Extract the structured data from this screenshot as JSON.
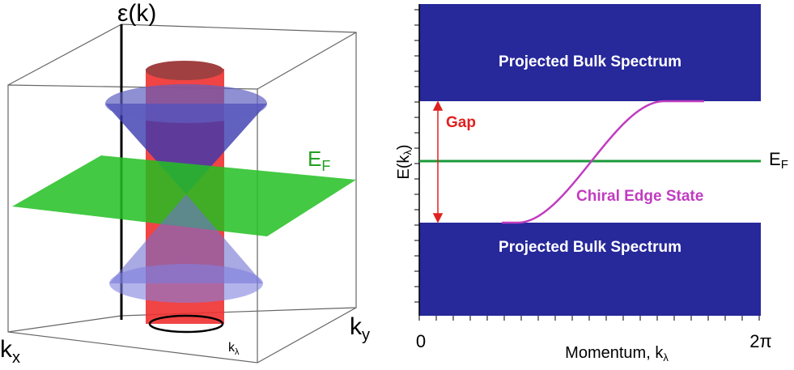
{
  "left_panel": {
    "axis_energy": "ε(k)",
    "fermi_level": {
      "main": "E",
      "sub": "F"
    },
    "axis_kx": {
      "main": "k",
      "sub": "x"
    },
    "axis_ky": {
      "main": "k",
      "sub": "y"
    },
    "axis_klambda": {
      "main": "k",
      "sub": "λ"
    }
  },
  "right_panel": {
    "bulk_upper": "Projected Bulk Spectrum",
    "bulk_lower": "Projected Bulk Spectrum",
    "gap": "Gap",
    "edge_state": "Chiral Edge State",
    "y_label": {
      "main": "E(k",
      "sub": "λ",
      "end": ")"
    },
    "fermi_level": {
      "main": "E",
      "sub": "F"
    },
    "x_start": "0",
    "x_end": "2π",
    "x_label": {
      "main": "Momentum, k",
      "sub": "λ"
    }
  }
}
